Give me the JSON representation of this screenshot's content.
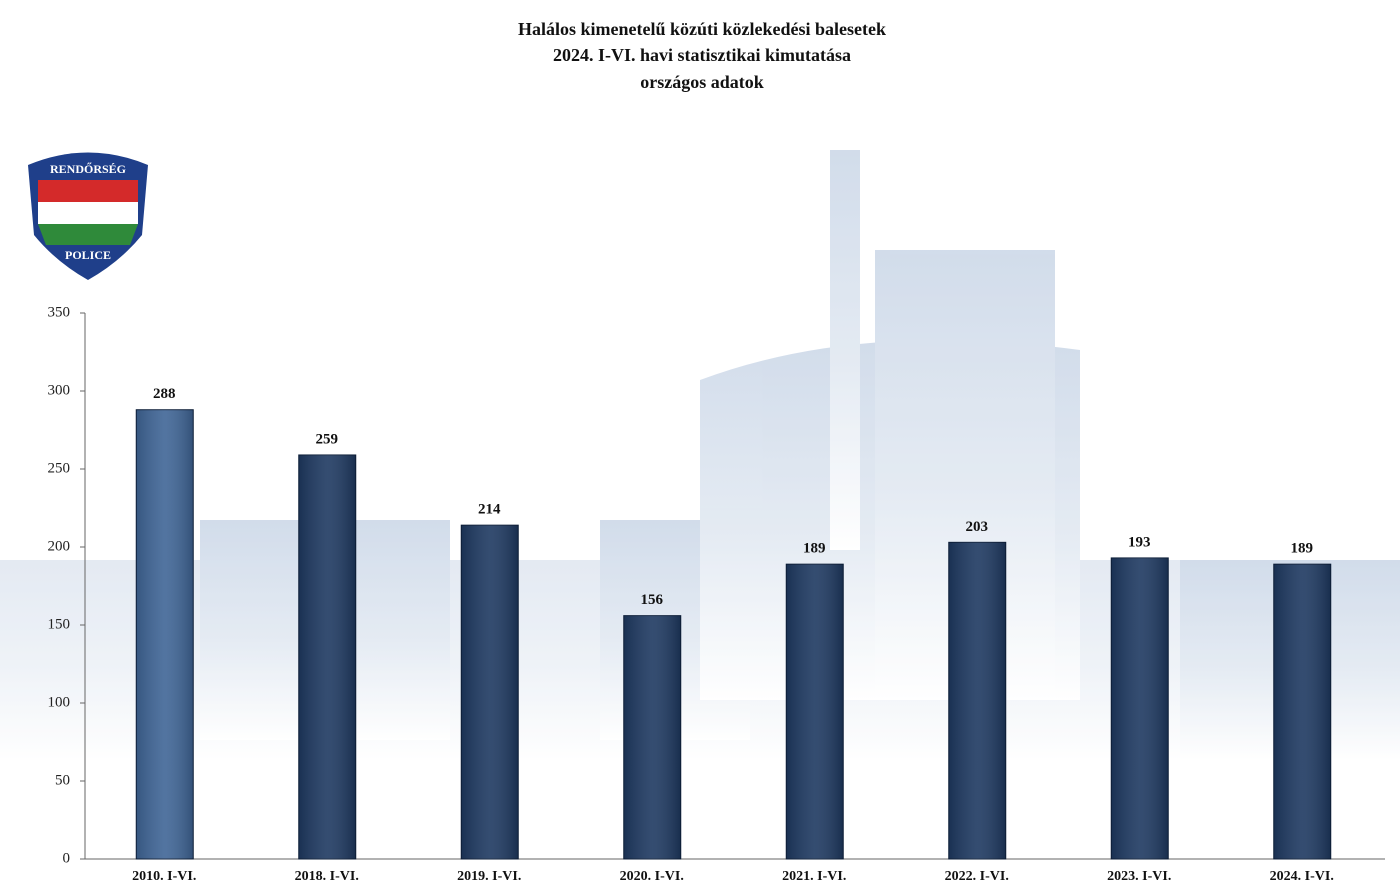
{
  "chart_data": {
    "type": "bar",
    "title": [
      "Halálos kimenetelű közúti közlekedési balesetek",
      "2024. I-VI. havi statisztikai kimutatása",
      "országos adatok"
    ],
    "logo": {
      "top": "RENDŐRSÉG",
      "bottom": "POLICE"
    },
    "categories": [
      "2010. I-VI.",
      "2018. I-VI.",
      "2019. I-VI.",
      "2020. I-VI.",
      "2021. I-VI.",
      "2022. I-VI.",
      "2023. I-VI.",
      "2024. I-VI."
    ],
    "values": [
      288,
      259,
      214,
      156,
      189,
      203,
      193,
      189
    ],
    "colors": [
      "#3f6596",
      "#1e3961",
      "#1e3961",
      "#1e3961",
      "#1e3961",
      "#1e3961",
      "#1e3961",
      "#1e3961"
    ],
    "ylim": [
      0,
      350
    ],
    "yticks": [
      0,
      50,
      100,
      150,
      200,
      250,
      300,
      350
    ],
    "grid": false
  }
}
